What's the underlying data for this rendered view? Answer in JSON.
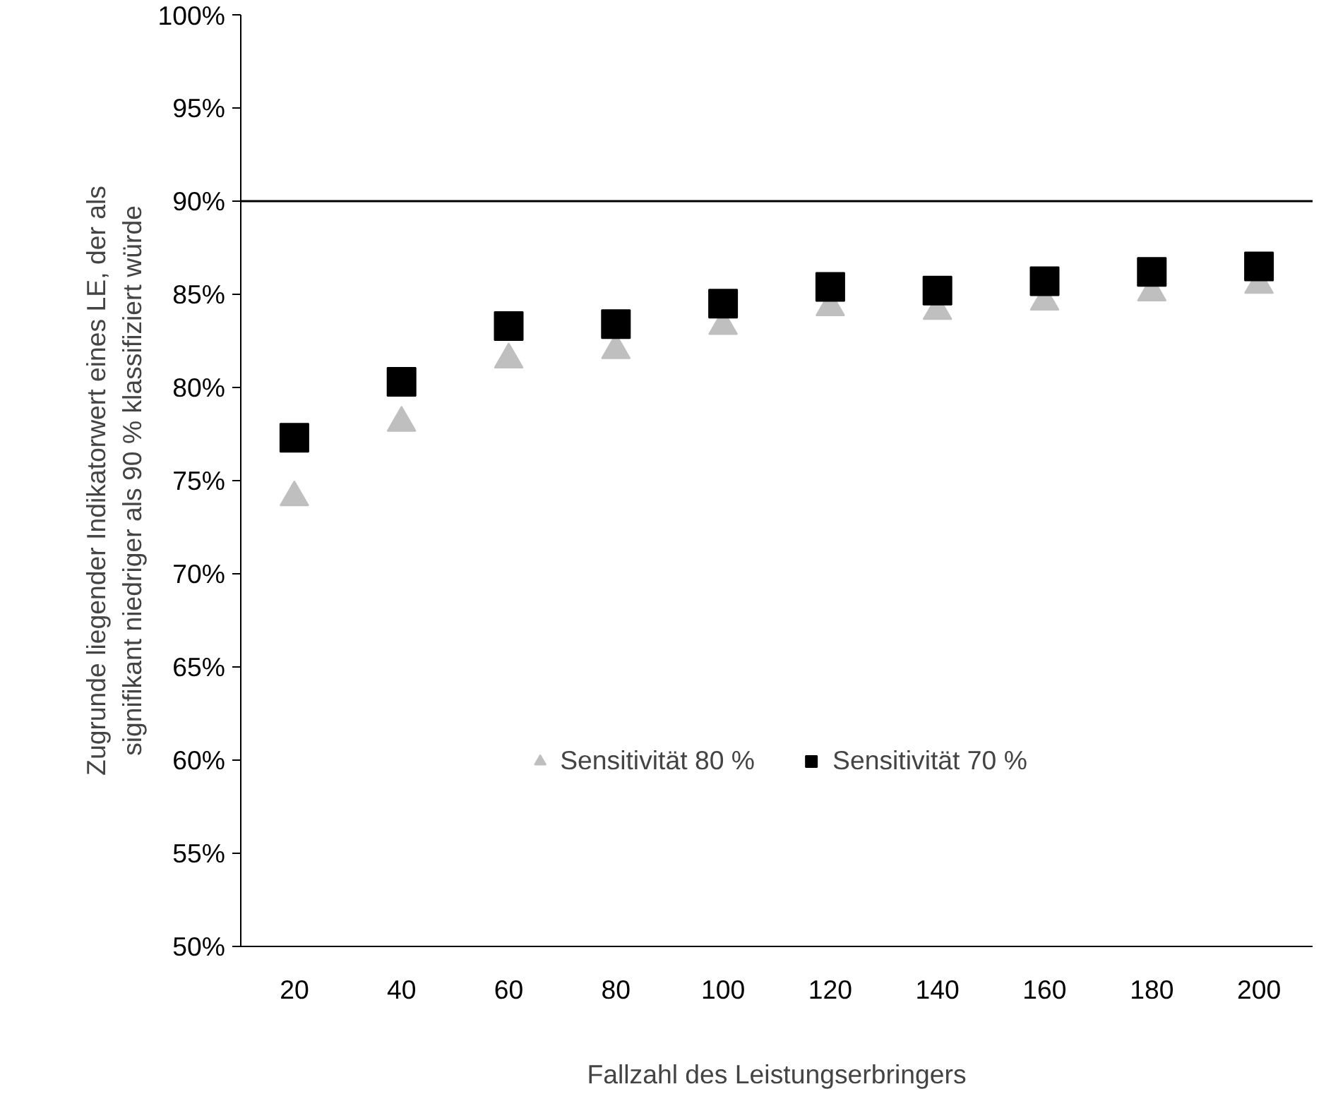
{
  "chart_data": {
    "type": "scatter",
    "xlabel": "Fallzahl des Leistungserbringers",
    "ylabel": "Zugrunde liegender Indikatorwert eines LE, der als signifikant niedriger als 90 % klassifiziert würde",
    "categories": [
      "20",
      "40",
      "60",
      "80",
      "100",
      "120",
      "140",
      "160",
      "180",
      "200"
    ],
    "series": [
      {
        "name": "Sensitivität 80 %",
        "color": "#bfbfbf",
        "marker": "triangle",
        "values": [
          74.1,
          78.1,
          81.5,
          82.0,
          83.3,
          84.3,
          84.1,
          84.6,
          85.1,
          85.5
        ]
      },
      {
        "name": "Sensitivität 70 %",
        "color": "#000000",
        "marker": "square",
        "values": [
          77.3,
          80.3,
          83.3,
          83.4,
          84.5,
          85.4,
          85.2,
          85.7,
          86.2,
          86.5
        ]
      }
    ],
    "ylim": [
      50,
      100
    ],
    "yticks": [
      {
        "value": 50,
        "label": "50%"
      },
      {
        "value": 55,
        "label": "55%"
      },
      {
        "value": 60,
        "label": "60%"
      },
      {
        "value": 65,
        "label": "65%"
      },
      {
        "value": 70,
        "label": "70%"
      },
      {
        "value": 75,
        "label": "75%"
      },
      {
        "value": 80,
        "label": "80%"
      },
      {
        "value": 85,
        "label": "85%"
      },
      {
        "value": 90,
        "label": "90%"
      },
      {
        "value": 95,
        "label": "95%"
      },
      {
        "value": 100,
        "label": "100%"
      }
    ],
    "ref_lines": [
      {
        "axis": "y",
        "value": 90,
        "color": "#000000"
      }
    ],
    "grid": false,
    "legend": "bottom"
  }
}
